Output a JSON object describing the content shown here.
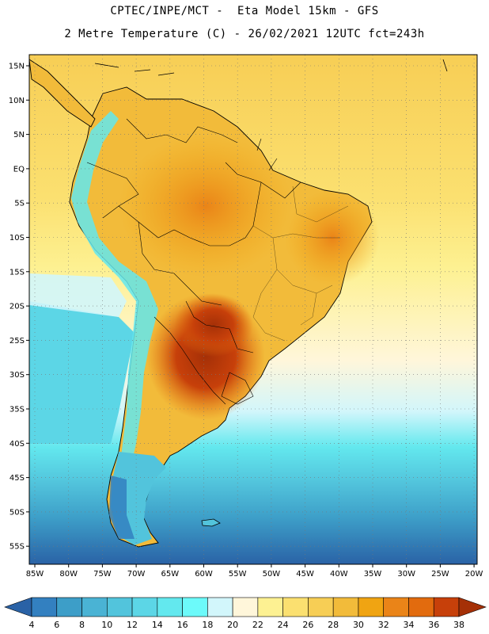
{
  "header": {
    "title_line1": "CPTEC/INPE/MCT -  Eta Model 15km - GFS",
    "title_line2": "2 Metre Temperature (C) - 26/02/2021 12UTC fct=243h"
  },
  "map": {
    "lat_labels": [
      "15N",
      "10N",
      "5N",
      "EQ",
      "5S",
      "10S",
      "15S",
      "20S",
      "25S",
      "30S",
      "35S",
      "40S",
      "45S",
      "50S",
      "55S"
    ],
    "lon_labels": [
      "85W",
      "80W",
      "75W",
      "70W",
      "65W",
      "60W",
      "55W",
      "50W",
      "45W",
      "40W",
      "35W",
      "30W",
      "25W",
      "20W"
    ]
  },
  "legend": {
    "values": [
      "4",
      "6",
      "8",
      "10",
      "12",
      "14",
      "16",
      "18",
      "20",
      "22",
      "24",
      "26",
      "28",
      "30",
      "32",
      "34",
      "36",
      "38"
    ],
    "colors": [
      "#2a62a6",
      "#3380c0",
      "#3d9ec8",
      "#4ab3d4",
      "#52c4dc",
      "#5cd6e6",
      "#63e8ee",
      "#6cfafa",
      "#d2f6fb",
      "#fff6da",
      "#fdf192",
      "#fbe070",
      "#f7ce55",
      "#f2bb3a",
      "#f0a412",
      "#ea8418",
      "#e26b0e",
      "#c7400a",
      "#a53007"
    ]
  },
  "colors": {
    "land_warm": "#f0a412",
    "land_hot": "#c7400a",
    "ocean_warm": "#fbe070",
    "ocean_cool": "#52c4dc",
    "ocean_cold": "#2a62a6"
  }
}
